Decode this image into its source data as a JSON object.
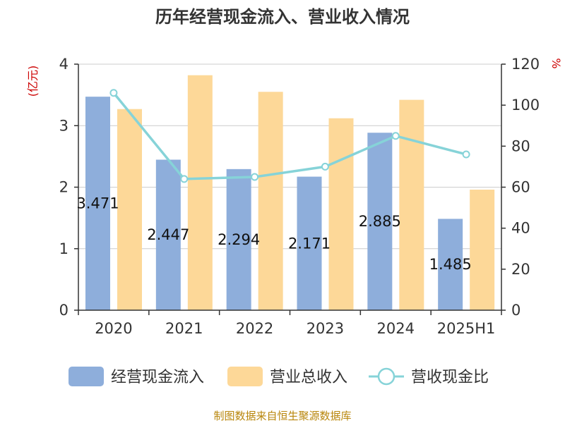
{
  "chart_data": {
    "type": "bar",
    "title": "历年经营现金流入、营业收入情况",
    "categories": [
      "2020",
      "2021",
      "2022",
      "2023",
      "2024",
      "2025H1"
    ],
    "y_left": {
      "unit": "(亿元)",
      "ylim": [
        0,
        4
      ],
      "ticks": [
        "0",
        "1",
        "2",
        "3",
        "4"
      ]
    },
    "y_right": {
      "unit": "%",
      "ylim": [
        0,
        120
      ],
      "ticks": [
        "0",
        "20",
        "40",
        "60",
        "80",
        "100",
        "120"
      ]
    },
    "series": [
      {
        "name": "经营现金流入",
        "type": "bar",
        "axis": "left",
        "color": "#8eaedb",
        "values": [
          3.471,
          2.447,
          2.294,
          2.171,
          2.885,
          1.485
        ],
        "labels": [
          "3.471",
          "2.447",
          "2.294",
          "2.171",
          "2.885",
          "1.485"
        ]
      },
      {
        "name": "营业总收入",
        "type": "bar",
        "axis": "left",
        "color": "#fdd898",
        "values": [
          3.27,
          3.82,
          3.55,
          3.12,
          3.42,
          1.96
        ]
      },
      {
        "name": "营收现金比",
        "type": "line",
        "axis": "right",
        "color": "#86d3d8",
        "values": [
          106,
          64,
          65,
          70,
          85,
          76
        ]
      }
    ],
    "grid": true,
    "legend_position": "bottom"
  },
  "source": "制图数据来自恒生聚源数据库"
}
